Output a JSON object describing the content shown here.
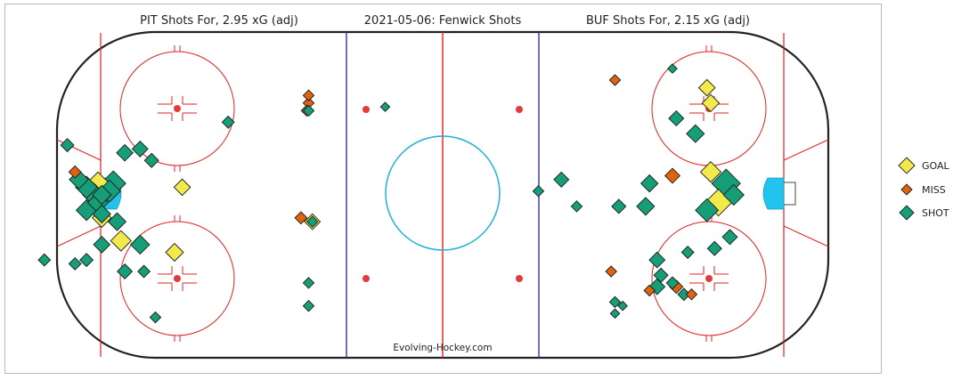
{
  "titles": {
    "left": "PIT Shots For, 2.95 xG (adj)",
    "center": "2021-05-06:  Fenwick Shots",
    "right": "BUF Shots For, 2.15 xG (adj)"
  },
  "watermark": "Evolving-Hockey.com",
  "colors": {
    "goal": "#f2ea4d",
    "miss": "#e0630f",
    "shot": "#169e78",
    "boards": "#222222",
    "red_line": "#e0201f",
    "blue_line": "#3b2fa8",
    "faceoff": "#e23b3b",
    "crease": "#22c4ee",
    "center_circle": "#22b0d6"
  },
  "legend": [
    {
      "label": "GOAL",
      "type": "goal"
    },
    {
      "label": "MISS",
      "type": "miss"
    },
    {
      "label": "SHOT",
      "type": "shot"
    }
  ],
  "chart_data": {
    "type": "scatter",
    "title": "2021-05-06:  Fenwick Shots",
    "x_range": [
      -100,
      100
    ],
    "y_range": [
      -42.5,
      42.5
    ],
    "series": [
      {
        "name": "GOAL",
        "points": [
          {
            "x": -90,
            "y": 3,
            "xg": 0.2
          },
          {
            "x": -89,
            "y": -6,
            "xg": 0.12
          },
          {
            "x": -84,
            "y": -12,
            "xg": 0.15
          },
          {
            "x": -70,
            "y": -15,
            "xg": 0.1
          },
          {
            "x": -68,
            "y": 2,
            "xg": 0.08
          },
          {
            "x": -34,
            "y": -7,
            "xg": 0.07
          },
          {
            "x": 69,
            "y": 28,
            "xg": 0.08
          },
          {
            "x": 70,
            "y": 24,
            "xg": 0.09
          },
          {
            "x": 70,
            "y": 6,
            "xg": 0.15
          },
          {
            "x": 72,
            "y": -2,
            "xg": 0.3
          }
        ]
      },
      {
        "name": "MISS",
        "points": [
          {
            "x": -35,
            "y": 24,
            "xg": 0.02
          },
          {
            "x": -35,
            "y": 26,
            "xg": 0.02
          },
          {
            "x": -35.5,
            "y": 22,
            "xg": 0.02
          },
          {
            "x": -37,
            "y": -6,
            "xg": 0.03
          },
          {
            "x": -96,
            "y": 6,
            "xg": 0.03
          },
          {
            "x": 45,
            "y": 30,
            "xg": 0.02
          },
          {
            "x": 60,
            "y": 5,
            "xg": 0.06
          },
          {
            "x": 44,
            "y": -20,
            "xg": 0.02
          },
          {
            "x": 54,
            "y": -25,
            "xg": 0.02
          },
          {
            "x": 61,
            "y": -24,
            "xg": 0.04
          },
          {
            "x": 65,
            "y": -26,
            "xg": 0.02
          }
        ]
      },
      {
        "name": "SHOT",
        "points": [
          {
            "x": -98,
            "y": 13,
            "xg": 0.04
          },
          {
            "x": -95,
            "y": 4,
            "xg": 0.12
          },
          {
            "x": -93,
            "y": 2,
            "xg": 0.18
          },
          {
            "x": -93,
            "y": -4,
            "xg": 0.15
          },
          {
            "x": -91,
            "y": 0,
            "xg": 0.2
          },
          {
            "x": -90,
            "y": -2,
            "xg": 0.15
          },
          {
            "x": -89,
            "y": -5,
            "xg": 0.1
          },
          {
            "x": -89,
            "y": 0,
            "xg": 0.12
          },
          {
            "x": -87,
            "y": 1,
            "xg": 0.18
          },
          {
            "x": -86,
            "y": 3,
            "xg": 0.25
          },
          {
            "x": -85,
            "y": -7,
            "xg": 0.1
          },
          {
            "x": -83,
            "y": 11,
            "xg": 0.08
          },
          {
            "x": -79,
            "y": 12,
            "xg": 0.07
          },
          {
            "x": -76,
            "y": 9,
            "xg": 0.05
          },
          {
            "x": -89,
            "y": -13,
            "xg": 0.08
          },
          {
            "x": -79,
            "y": -13,
            "xg": 0.12
          },
          {
            "x": -83,
            "y": -20,
            "xg": 0.06
          },
          {
            "x": -78,
            "y": -20,
            "xg": 0.03
          },
          {
            "x": -93,
            "y": -17,
            "xg": 0.04
          },
          {
            "x": -96,
            "y": -18,
            "xg": 0.03
          },
          {
            "x": -104,
            "y": -17,
            "xg": 0.03
          },
          {
            "x": -56,
            "y": 19,
            "xg": 0.03
          },
          {
            "x": -35,
            "y": 22,
            "xg": 0.02
          },
          {
            "x": -34,
            "y": -7,
            "xg": 0.02
          },
          {
            "x": -35,
            "y": -23,
            "xg": 0.02
          },
          {
            "x": -35,
            "y": -29,
            "xg": 0.02
          },
          {
            "x": -75,
            "y": -32,
            "xg": 0.02
          },
          {
            "x": -15,
            "y": 23,
            "xg": 0.01
          },
          {
            "x": 60,
            "y": 33,
            "xg": 0.01
          },
          {
            "x": 61,
            "y": 20,
            "xg": 0.06
          },
          {
            "x": 66,
            "y": 16,
            "xg": 0.1
          },
          {
            "x": 54,
            "y": 3,
            "xg": 0.09
          },
          {
            "x": 46,
            "y": -3,
            "xg": 0.05
          },
          {
            "x": 53,
            "y": -3,
            "xg": 0.1
          },
          {
            "x": 25,
            "y": 1,
            "xg": 0.02
          },
          {
            "x": 35,
            "y": -3,
            "xg": 0.02
          },
          {
            "x": 31,
            "y": 4,
            "xg": 0.06
          },
          {
            "x": 69,
            "y": -4,
            "xg": 0.2
          },
          {
            "x": 74,
            "y": 3,
            "xg": 0.35
          },
          {
            "x": 76,
            "y": 0,
            "xg": 0.15
          },
          {
            "x": 75,
            "y": -11,
            "xg": 0.06
          },
          {
            "x": 71,
            "y": -14,
            "xg": 0.05
          },
          {
            "x": 56,
            "y": -17,
            "xg": 0.07
          },
          {
            "x": 57,
            "y": -21,
            "xg": 0.05
          },
          {
            "x": 56,
            "y": -24,
            "xg": 0.07
          },
          {
            "x": 64,
            "y": -15,
            "xg": 0.03
          },
          {
            "x": 60,
            "y": -23,
            "xg": 0.03
          },
          {
            "x": 45,
            "y": -28,
            "xg": 0.02
          },
          {
            "x": 47,
            "y": -29,
            "xg": 0.01
          },
          {
            "x": 45,
            "y": -31,
            "xg": 0.01
          },
          {
            "x": 63,
            "y": -26,
            "xg": 0.03
          }
        ]
      }
    ]
  }
}
